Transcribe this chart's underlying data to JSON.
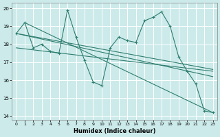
{
  "xlabel": "Humidex (Indice chaleur)",
  "bg_color": "#cceaea",
  "grid_color": "#ffffff",
  "line_color": "#2e7d6e",
  "xlim": [
    -0.5,
    23.5
  ],
  "ylim": [
    13.8,
    20.3
  ],
  "yticks": [
    14,
    15,
    16,
    17,
    18,
    19,
    20
  ],
  "xticks": [
    0,
    1,
    2,
    3,
    4,
    5,
    6,
    7,
    8,
    9,
    10,
    11,
    12,
    13,
    14,
    15,
    16,
    17,
    18,
    19,
    20,
    21,
    22,
    23
  ],
  "main_series": [
    18.6,
    19.2,
    17.8,
    18.0,
    17.6,
    17.5,
    19.9,
    18.4,
    17.1,
    15.9,
    15.7,
    17.8,
    18.4,
    18.2,
    18.1,
    19.3,
    19.5,
    19.8,
    19.0,
    17.3,
    16.5,
    15.8,
    14.3,
    14.2
  ],
  "trend_lines": [
    {
      "x0": 0,
      "y0": 18.6,
      "x1": 23,
      "y1": 16.6
    },
    {
      "x0": 0,
      "y0": 18.6,
      "x1": 23,
      "y1": 16.3
    },
    {
      "x0": 1,
      "y0": 19.2,
      "x1": 23,
      "y1": 14.2
    },
    {
      "x0": 0,
      "y0": 17.8,
      "x1": 23,
      "y1": 16.6
    }
  ],
  "figsize": [
    3.2,
    2.0
  ],
  "dpi": 100
}
